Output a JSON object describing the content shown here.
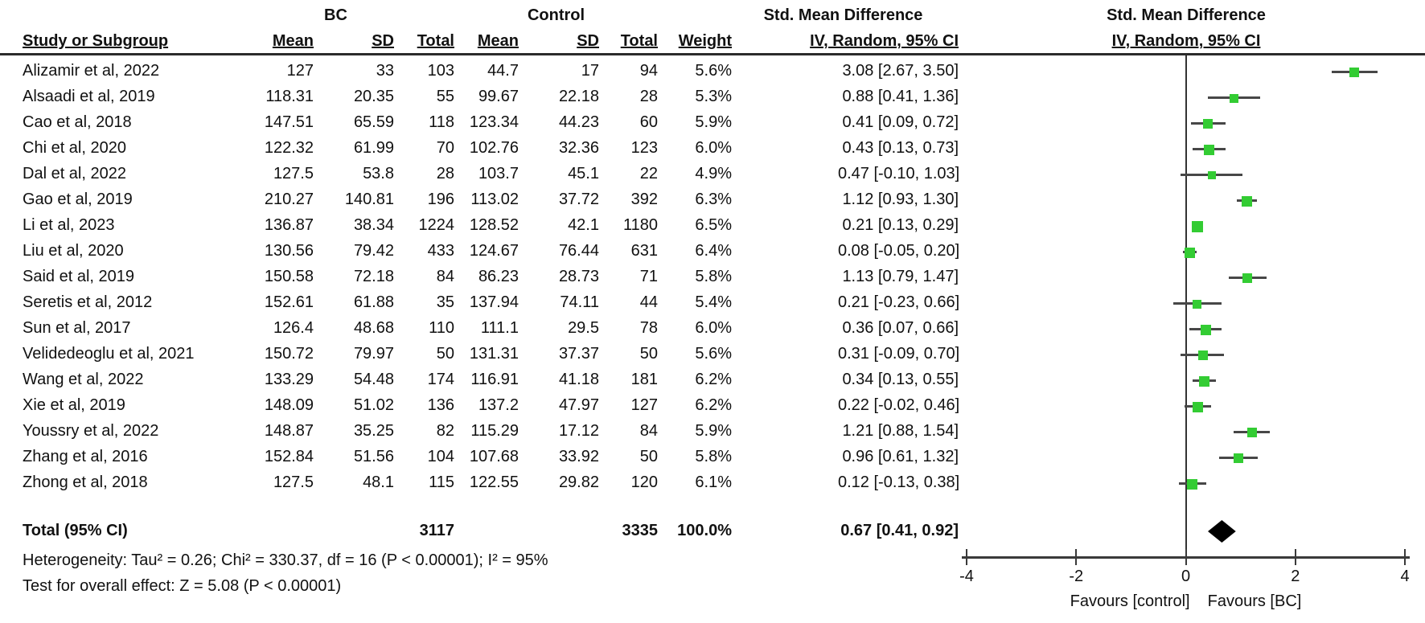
{
  "header": {
    "group_bc": "BC",
    "group_control": "Control",
    "smd_text_col_title": "Std. Mean Difference",
    "smd_plot_col_title": "Std. Mean Difference",
    "col_study": "Study or Subgroup",
    "col_bc_mean": "Mean",
    "col_bc_sd": "SD",
    "col_bc_total": "Total",
    "col_c_mean": "Mean",
    "col_c_sd": "SD",
    "col_c_total": "Total",
    "col_weight": "Weight",
    "col_ci": "IV, Random, 95% CI",
    "col_ci_plot": "IV, Random, 95% CI"
  },
  "chart_data": {
    "type": "forest",
    "x_axis": {
      "min": -4,
      "max": 4,
      "ticks": [
        "-4",
        "-2",
        "0",
        "2",
        "4"
      ],
      "tick_values": [
        -4,
        -2,
        0,
        2,
        4
      ],
      "label_left": "Favours [control]",
      "label_right": "Favours [BC]"
    },
    "studies": [
      {
        "name": "Alizamir et al, 2022",
        "bc_mean": "127",
        "bc_sd": "33",
        "bc_total": "103",
        "c_mean": "44.7",
        "c_sd": "17",
        "c_total": "94",
        "weight": "5.6%",
        "ci_text": "3.08 [2.67, 3.50]",
        "est": 3.08,
        "lo": 2.67,
        "hi": 3.5,
        "weight_pct": 5.6
      },
      {
        "name": "Alsaadi et al, 2019",
        "bc_mean": "118.31",
        "bc_sd": "20.35",
        "bc_total": "55",
        "c_mean": "99.67",
        "c_sd": "22.18",
        "c_total": "28",
        "weight": "5.3%",
        "ci_text": "0.88 [0.41, 1.36]",
        "est": 0.88,
        "lo": 0.41,
        "hi": 1.36,
        "weight_pct": 5.3
      },
      {
        "name": "Cao et al, 2018",
        "bc_mean": "147.51",
        "bc_sd": "65.59",
        "bc_total": "118",
        "c_mean": "123.34",
        "c_sd": "44.23",
        "c_total": "60",
        "weight": "5.9%",
        "ci_text": "0.41 [0.09, 0.72]",
        "est": 0.41,
        "lo": 0.09,
        "hi": 0.72,
        "weight_pct": 5.9
      },
      {
        "name": "Chi et al, 2020",
        "bc_mean": "122.32",
        "bc_sd": "61.99",
        "bc_total": "70",
        "c_mean": "102.76",
        "c_sd": "32.36",
        "c_total": "123",
        "weight": "6.0%",
        "ci_text": "0.43 [0.13, 0.73]",
        "est": 0.43,
        "lo": 0.13,
        "hi": 0.73,
        "weight_pct": 6.0
      },
      {
        "name": "Dal et al, 2022",
        "bc_mean": "127.5",
        "bc_sd": "53.8",
        "bc_total": "28",
        "c_mean": "103.7",
        "c_sd": "45.1",
        "c_total": "22",
        "weight": "4.9%",
        "ci_text": "0.47 [-0.10, 1.03]",
        "est": 0.47,
        "lo": -0.1,
        "hi": 1.03,
        "weight_pct": 4.9
      },
      {
        "name": "Gao et al, 2019",
        "bc_mean": "210.27",
        "bc_sd": "140.81",
        "bc_total": "196",
        "c_mean": "113.02",
        "c_sd": "37.72",
        "c_total": "392",
        "weight": "6.3%",
        "ci_text": "1.12 [0.93, 1.30]",
        "est": 1.12,
        "lo": 0.93,
        "hi": 1.3,
        "weight_pct": 6.3
      },
      {
        "name": "Li et al, 2023",
        "bc_mean": "136.87",
        "bc_sd": "38.34",
        "bc_total": "1224",
        "c_mean": "128.52",
        "c_sd": "42.1",
        "c_total": "1180",
        "weight": "6.5%",
        "ci_text": "0.21 [0.13, 0.29]",
        "est": 0.21,
        "lo": 0.13,
        "hi": 0.29,
        "weight_pct": 6.5
      },
      {
        "name": "Liu et al, 2020",
        "bc_mean": "130.56",
        "bc_sd": "79.42",
        "bc_total": "433",
        "c_mean": "124.67",
        "c_sd": "76.44",
        "c_total": "631",
        "weight": "6.4%",
        "ci_text": "0.08 [-0.05, 0.20]",
        "est": 0.08,
        "lo": -0.05,
        "hi": 0.2,
        "weight_pct": 6.4
      },
      {
        "name": "Said et al, 2019",
        "bc_mean": "150.58",
        "bc_sd": "72.18",
        "bc_total": "84",
        "c_mean": "86.23",
        "c_sd": "28.73",
        "c_total": "71",
        "weight": "5.8%",
        "ci_text": "1.13 [0.79, 1.47]",
        "est": 1.13,
        "lo": 0.79,
        "hi": 1.47,
        "weight_pct": 5.8
      },
      {
        "name": "Seretis et al, 2012",
        "bc_mean": "152.61",
        "bc_sd": "61.88",
        "bc_total": "35",
        "c_mean": "137.94",
        "c_sd": "74.11",
        "c_total": "44",
        "weight": "5.4%",
        "ci_text": "0.21 [-0.23, 0.66]",
        "est": 0.21,
        "lo": -0.23,
        "hi": 0.66,
        "weight_pct": 5.4
      },
      {
        "name": "Sun et al, 2017",
        "bc_mean": "126.4",
        "bc_sd": "48.68",
        "bc_total": "110",
        "c_mean": "111.1",
        "c_sd": "29.5",
        "c_total": "78",
        "weight": "6.0%",
        "ci_text": "0.36 [0.07, 0.66]",
        "est": 0.36,
        "lo": 0.07,
        "hi": 0.66,
        "weight_pct": 6.0
      },
      {
        "name": "Velidedeoglu et al, 2021",
        "bc_mean": "150.72",
        "bc_sd": "79.97",
        "bc_total": "50",
        "c_mean": "131.31",
        "c_sd": "37.37",
        "c_total": "50",
        "weight": "5.6%",
        "ci_text": "0.31 [-0.09, 0.70]",
        "est": 0.31,
        "lo": -0.09,
        "hi": 0.7,
        "weight_pct": 5.6
      },
      {
        "name": "Wang et al, 2022",
        "bc_mean": "133.29",
        "bc_sd": "54.48",
        "bc_total": "174",
        "c_mean": "116.91",
        "c_sd": "41.18",
        "c_total": "181",
        "weight": "6.2%",
        "ci_text": "0.34 [0.13, 0.55]",
        "est": 0.34,
        "lo": 0.13,
        "hi": 0.55,
        "weight_pct": 6.2
      },
      {
        "name": "Xie et al, 2019",
        "bc_mean": "148.09",
        "bc_sd": "51.02",
        "bc_total": "136",
        "c_mean": "137.2",
        "c_sd": "47.97",
        "c_total": "127",
        "weight": "6.2%",
        "ci_text": "0.22 [-0.02, 0.46]",
        "est": 0.22,
        "lo": -0.02,
        "hi": 0.46,
        "weight_pct": 6.2
      },
      {
        "name": "Youssry et al, 2022",
        "bc_mean": "148.87",
        "bc_sd": "35.25",
        "bc_total": "82",
        "c_mean": "115.29",
        "c_sd": "17.12",
        "c_total": "84",
        "weight": "5.9%",
        "ci_text": "1.21 [0.88, 1.54]",
        "est": 1.21,
        "lo": 0.88,
        "hi": 1.54,
        "weight_pct": 5.9
      },
      {
        "name": "Zhang et al, 2016",
        "bc_mean": "152.84",
        "bc_sd": "51.56",
        "bc_total": "104",
        "c_mean": "107.68",
        "c_sd": "33.92",
        "c_total": "50",
        "weight": "5.8%",
        "ci_text": "0.96 [0.61, 1.32]",
        "est": 0.96,
        "lo": 0.61,
        "hi": 1.32,
        "weight_pct": 5.8
      },
      {
        "name": "Zhong et al, 2018",
        "bc_mean": "127.5",
        "bc_sd": "48.1",
        "bc_total": "115",
        "c_mean": "122.55",
        "c_sd": "29.82",
        "c_total": "120",
        "weight": "6.1%",
        "ci_text": "0.12 [-0.13, 0.38]",
        "est": 0.12,
        "lo": -0.13,
        "hi": 0.38,
        "weight_pct": 6.1
      }
    ],
    "total": {
      "label": "Total (95% CI)",
      "bc_total": "3117",
      "control_total": "3335",
      "weight": "100.0%",
      "ci_text": "0.67 [0.41, 0.92]",
      "est": 0.67,
      "lo": 0.41,
      "hi": 0.92
    }
  },
  "footer": {
    "heterogeneity": "Heterogeneity: Tau² = 0.26; Chi² = 330.37, df = 16 (P < 0.00001); I² = 95%",
    "overall_effect": "Test for overall effect: Z = 5.08 (P < 0.00001)"
  },
  "colors": {
    "marker_green": "#33cc33",
    "ci_line": "#474747",
    "diamond": "#000000",
    "axis": "#3a3a3a",
    "text": "#111111"
  }
}
